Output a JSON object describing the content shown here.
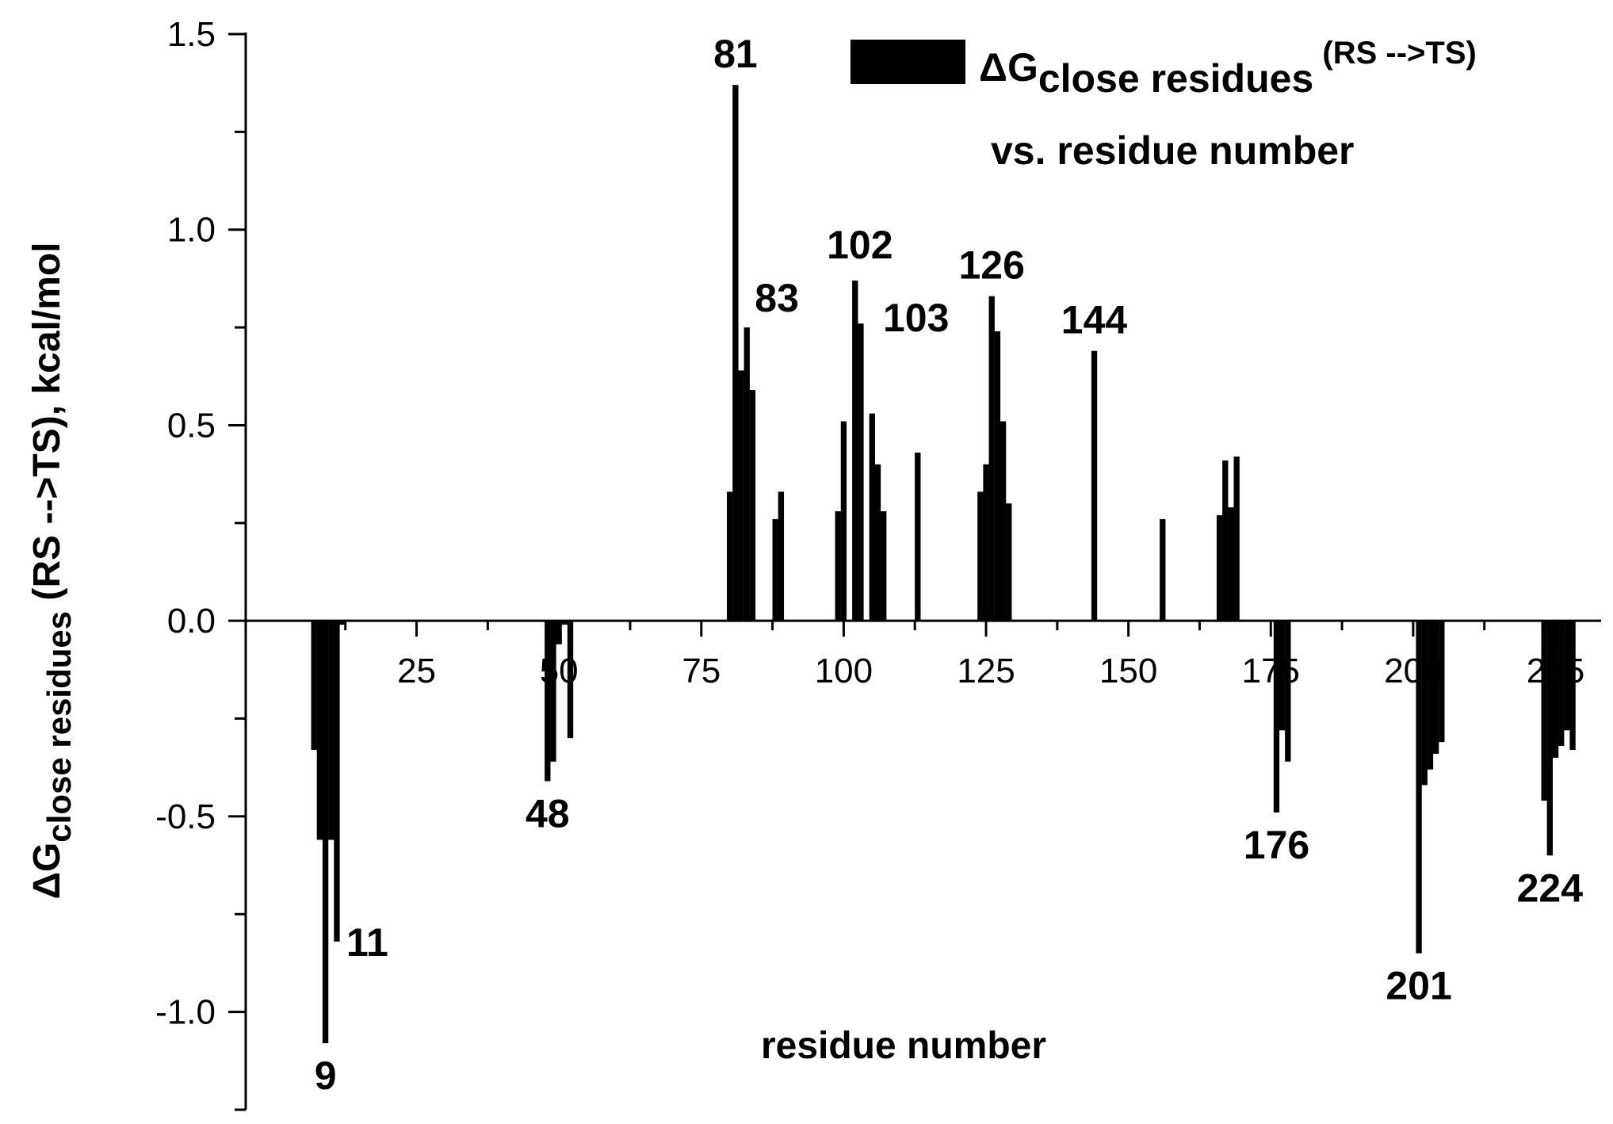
{
  "chart_data": {
    "type": "bar",
    "title": "",
    "xlabel": "residue number",
    "ylabel": {
      "symbol": "ΔG",
      "subscript": "close residues",
      "rest": " (RS -->TS), kcal/mol"
    },
    "xlim": [
      -5,
      233
    ],
    "ylim": [
      -1.25,
      1.5
    ],
    "xticks": [
      25,
      50,
      75,
      100,
      125,
      150,
      175,
      200,
      225
    ],
    "yticks": [
      {
        "value": 1.5,
        "label": "1.5"
      },
      {
        "value": 1.0,
        "label": "1.0"
      },
      {
        "value": 0.5,
        "label": "0.5"
      },
      {
        "value": 0.0,
        "label": "0.0"
      },
      {
        "value": -0.5,
        "label": "-0.5"
      },
      {
        "value": -1.0,
        "label": "-1.0"
      }
    ],
    "legend": {
      "position": "top-right",
      "symbol": "ΔG",
      "subscript": "close residues",
      "superscript": " (RS -->TS)",
      "line2": "vs. residue number",
      "color": "#000000"
    },
    "bar_color": "#000000",
    "series": [
      {
        "x": [
          7,
          8,
          9,
          10,
          11,
          12,
          48,
          49,
          50,
          51,
          52,
          80,
          81,
          82,
          83,
          84,
          88,
          89,
          99,
          100,
          102,
          103,
          105,
          106,
          107,
          113,
          124,
          125,
          126,
          127,
          128,
          129,
          144,
          156,
          166,
          167,
          168,
          169,
          176,
          177,
          178,
          201,
          202,
          203,
          204,
          205,
          223,
          224,
          225,
          226,
          227,
          228
        ],
        "values": [
          -0.33,
          -0.56,
          -1.08,
          -0.56,
          -0.82,
          -0.01,
          -0.41,
          -0.36,
          -0.06,
          -0.01,
          -0.3,
          0.33,
          1.37,
          0.64,
          0.75,
          0.59,
          0.26,
          0.33,
          0.28,
          0.51,
          0.87,
          0.76,
          0.53,
          0.4,
          0.28,
          0.43,
          0.33,
          0.4,
          0.83,
          0.74,
          0.51,
          0.3,
          0.69,
          0.26,
          0.27,
          0.41,
          0.29,
          0.42,
          -0.49,
          -0.28,
          -0.36,
          -0.85,
          -0.42,
          -0.38,
          -0.34,
          -0.31,
          -0.46,
          -0.6,
          -0.35,
          -0.32,
          -0.28,
          -0.33
        ]
      }
    ],
    "annotations": [
      {
        "text": "9",
        "x": 9,
        "y": -1.08
      },
      {
        "text": "11",
        "x": 11,
        "y": -0.82
      },
      {
        "text": "48",
        "x": 48,
        "y": -0.41
      },
      {
        "text": "81",
        "x": 81,
        "y": 1.37
      },
      {
        "text": "83",
        "x": 83,
        "y": 0.75
      },
      {
        "text": "102",
        "x": 102,
        "y": 0.87
      },
      {
        "text": "103",
        "x": 103,
        "y": 0.76
      },
      {
        "text": "126",
        "x": 126,
        "y": 0.83
      },
      {
        "text": "144",
        "x": 144,
        "y": 0.69
      },
      {
        "text": "176",
        "x": 176,
        "y": -0.49
      },
      {
        "text": "201",
        "x": 201,
        "y": -0.85
      },
      {
        "text": "224",
        "x": 224,
        "y": -0.6
      }
    ]
  }
}
